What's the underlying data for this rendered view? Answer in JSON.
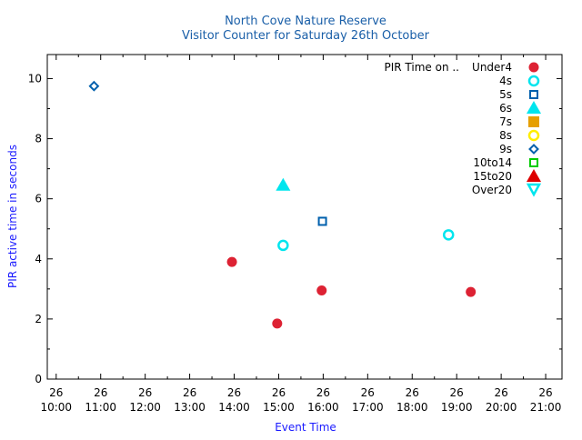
{
  "chart_data": {
    "type": "scatter",
    "title": "North Cove Nature Reserve",
    "subtitle": "Visitor Counter for Saturday 26th October",
    "xlabel": "Event Time",
    "ylabel": "PIR active time in seconds",
    "x_ticks": [
      {
        "value": "10:00",
        "line1": "26",
        "line2": "10:00"
      },
      {
        "value": "11:00",
        "line1": "26",
        "line2": "11:00"
      },
      {
        "value": "12:00",
        "line1": "26",
        "line2": "12:00"
      },
      {
        "value": "13:00",
        "line1": "26",
        "line2": "13:00"
      },
      {
        "value": "14:00",
        "line1": "26",
        "line2": "14:00"
      },
      {
        "value": "15:00",
        "line1": "26",
        "line2": "15:00"
      },
      {
        "value": "16:00",
        "line1": "26",
        "line2": "16:00"
      },
      {
        "value": "17:00",
        "line1": "26",
        "line2": "17:00"
      },
      {
        "value": "18:00",
        "line1": "26",
        "line2": "18:00"
      },
      {
        "value": "19:00",
        "line1": "26",
        "line2": "19:00"
      },
      {
        "value": "20:00",
        "line1": "26",
        "line2": "20:00"
      },
      {
        "value": "21:00",
        "line1": "26",
        "line2": "21:00"
      }
    ],
    "xlim": [
      "09:48",
      "21:22"
    ],
    "ylim": [
      0,
      10.8
    ],
    "y_ticks": [
      0,
      2,
      4,
      6,
      8,
      10
    ],
    "grid": false,
    "legend_position": "top-right",
    "legend_title": "PIR Time on ..",
    "series": [
      {
        "name": "Under4",
        "marker": "circle-filled",
        "color": "#dd2233",
        "points": [
          {
            "x": "13:57",
            "y": 3.9
          },
          {
            "x": "14:58",
            "y": 1.85
          },
          {
            "x": "15:58",
            "y": 2.95
          },
          {
            "x": "19:19",
            "y": 2.9
          }
        ]
      },
      {
        "name": "4s",
        "marker": "circle-open",
        "color": "#00e5ee",
        "points": [
          {
            "x": "15:06",
            "y": 4.45
          },
          {
            "x": "18:49",
            "y": 4.8
          }
        ]
      },
      {
        "name": "5s",
        "marker": "square-open",
        "color": "#0060ad",
        "points": [
          {
            "x": "15:59",
            "y": 5.25
          }
        ]
      },
      {
        "name": "6s",
        "marker": "triangle-up-filled",
        "color": "#00e5ee",
        "points": [
          {
            "x": "15:06",
            "y": 6.45
          }
        ]
      },
      {
        "name": "7s",
        "marker": "square-filled",
        "color": "#e69f00",
        "points": []
      },
      {
        "name": "8s",
        "marker": "circle-open",
        "color": "#ffee00",
        "points": []
      },
      {
        "name": "9s",
        "marker": "diamond-open",
        "color": "#0060ad",
        "points": [
          {
            "x": "10:51",
            "y": 9.75
          }
        ]
      },
      {
        "name": "10to14",
        "marker": "square-open",
        "color": "#00cc00",
        "points": []
      },
      {
        "name": "15to20",
        "marker": "triangle-up-filled",
        "color": "#dd0000",
        "points": []
      },
      {
        "name": "Over20",
        "marker": "triangle-down-open",
        "color": "#00e5ee",
        "points": []
      }
    ]
  },
  "colors": {
    "title": "#1a5fa8",
    "axis_label": "#1a1aff",
    "axis": "#000000"
  }
}
